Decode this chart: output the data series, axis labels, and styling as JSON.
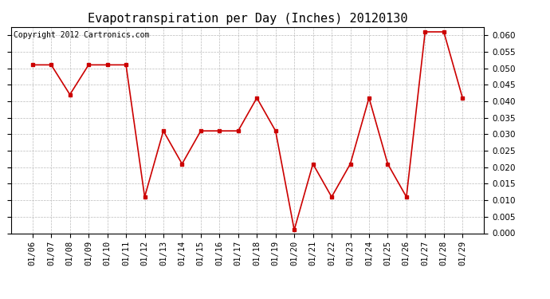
{
  "title": "Evapotranspiration per Day (Inches) 20120130",
  "copyright_text": "Copyright 2012 Cartronics.com",
  "dates": [
    "01/06",
    "01/07",
    "01/08",
    "01/09",
    "01/10",
    "01/11",
    "01/12",
    "01/13",
    "01/14",
    "01/15",
    "01/16",
    "01/17",
    "01/18",
    "01/19",
    "01/20",
    "01/21",
    "01/22",
    "01/23",
    "01/24",
    "01/25",
    "01/26",
    "01/27",
    "01/28",
    "01/29"
  ],
  "values": [
    0.051,
    0.051,
    0.042,
    0.051,
    0.051,
    0.051,
    0.011,
    0.031,
    0.021,
    0.031,
    0.031,
    0.031,
    0.041,
    0.031,
    0.001,
    0.021,
    0.011,
    0.021,
    0.041,
    0.021,
    0.011,
    0.061,
    0.061,
    0.041
  ],
  "line_color": "#cc0000",
  "marker": "s",
  "marker_size": 3,
  "ylim": [
    0.0,
    0.0625
  ],
  "yticks": [
    0.0,
    0.005,
    0.01,
    0.015,
    0.02,
    0.025,
    0.03,
    0.035,
    0.04,
    0.045,
    0.05,
    0.055,
    0.06
  ],
  "background_color": "#ffffff",
  "plot_bg_color": "#ffffff",
  "grid_color": "#bbbbbb",
  "title_fontsize": 11,
  "copyright_fontsize": 7,
  "tick_labelsize": 7.5
}
